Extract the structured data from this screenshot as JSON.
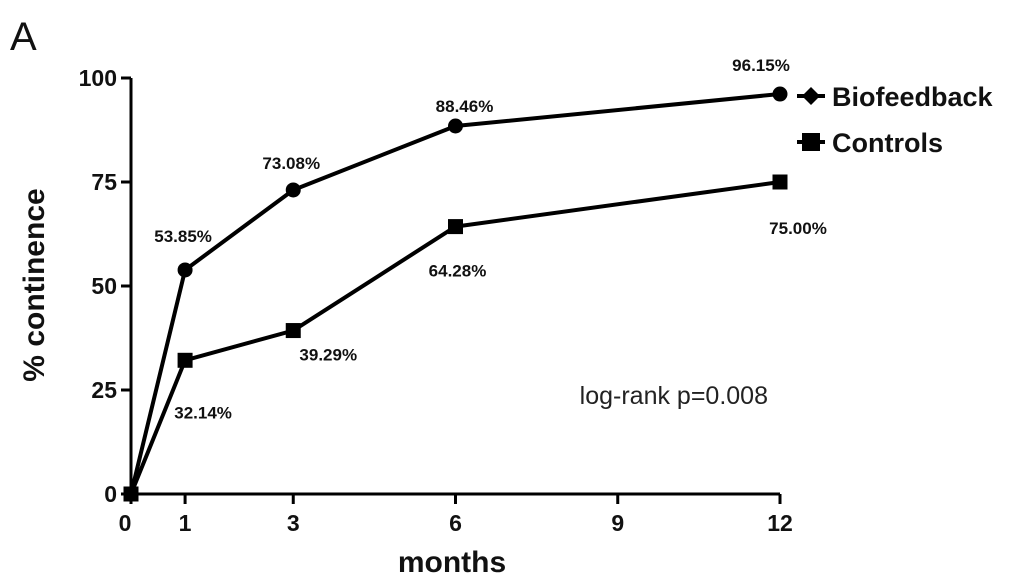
{
  "panel_label": "A",
  "chart_data": {
    "type": "line",
    "title": "",
    "xlabel": "months",
    "ylabel": "% continence",
    "x": [
      0,
      1,
      3,
      6,
      12
    ],
    "xticks": [
      "0",
      "1",
      "3",
      "6",
      "9",
      "12"
    ],
    "xlim": [
      0,
      12
    ],
    "yticks": [
      "0",
      "25",
      "50",
      "75",
      "100"
    ],
    "ylim": [
      0,
      100
    ],
    "grid": false,
    "legend_position": "top-right",
    "series": [
      {
        "name": "Biofeedback",
        "marker": "circle",
        "values": [
          0,
          53.85,
          73.08,
          88.46,
          96.15
        ],
        "labels": [
          "",
          "53.85%",
          "73.08%",
          "88.46%",
          "96.15%"
        ]
      },
      {
        "name": "Controls",
        "marker": "square",
        "values": [
          0,
          32.14,
          39.29,
          64.28,
          75.0
        ],
        "labels": [
          "",
          "32.14%",
          "39.29%",
          "64.28%",
          "75.00%"
        ]
      }
    ],
    "annotation": "log-rank p=0.008",
    "colors": {
      "line": "#000000",
      "text": "#111111"
    }
  }
}
